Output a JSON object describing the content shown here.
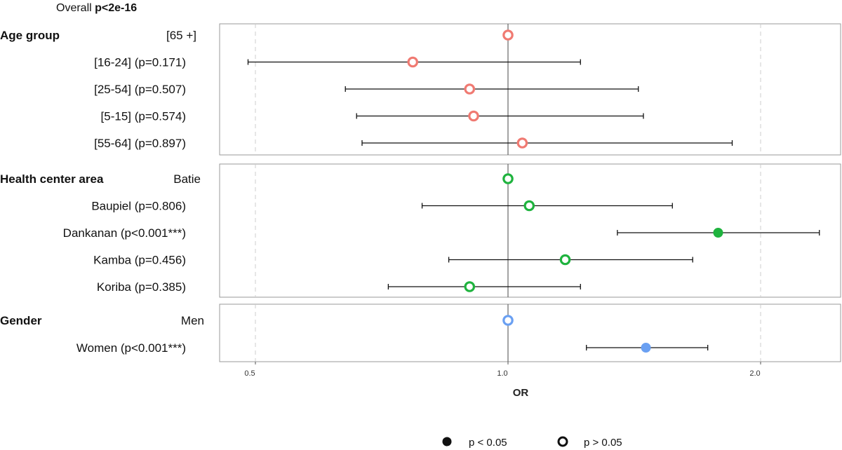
{
  "overall": {
    "prefix": "Overall ",
    "value": "p<2e-16"
  },
  "colors": {
    "Age group": "#f07a72",
    "Health center area": "#1fb33e",
    "Gender": "#6aa0f2",
    "axis": "#555555",
    "grid": "#cccccc",
    "panel_border": "#999999"
  },
  "chart_data": {
    "type": "forest",
    "xlabel": "OR",
    "x_scale": "log",
    "xlim": [
      0.47,
      2.4
    ],
    "xticks": [
      {
        "value": 0.5,
        "label": "0.5"
      },
      {
        "value": 1.0,
        "label": "1.0"
      },
      {
        "value": 2.0,
        "label": "2.0"
      }
    ],
    "reference": 1.0,
    "groups": [
      {
        "name": "Age group",
        "rows": [
          {
            "label": "[65 +]",
            "or": 1.0,
            "lo": null,
            "hi": null,
            "sig": false,
            "reference": true
          },
          {
            "label": "[16-24] (p=0.171)",
            "or": 0.77,
            "lo": 0.49,
            "hi": 1.22,
            "sig": false
          },
          {
            "label": "[25-54] (p=0.507)",
            "or": 0.9,
            "lo": 0.64,
            "hi": 1.43,
            "sig": false
          },
          {
            "label": "[5-15] (p=0.574)",
            "or": 0.91,
            "lo": 0.66,
            "hi": 1.45,
            "sig": false
          },
          {
            "label": "[55-64] (p=0.897)",
            "or": 1.04,
            "lo": 0.67,
            "hi": 1.85,
            "sig": false
          }
        ]
      },
      {
        "name": "Health center area",
        "rows": [
          {
            "label": "Batie",
            "or": 1.0,
            "lo": null,
            "hi": null,
            "sig": false,
            "reference": true
          },
          {
            "label": "Baupiel (p=0.806)",
            "or": 1.06,
            "lo": 0.79,
            "hi": 1.57,
            "sig": false
          },
          {
            "label": "Dankanan (p<0.001***)",
            "or": 1.78,
            "lo": 1.35,
            "hi": 2.35,
            "sig": true
          },
          {
            "label": "Kamba (p=0.456)",
            "or": 1.17,
            "lo": 0.85,
            "hi": 1.66,
            "sig": false
          },
          {
            "label": "Koriba (p=0.385)",
            "or": 0.9,
            "lo": 0.72,
            "hi": 1.22,
            "sig": false
          }
        ]
      },
      {
        "name": "Gender",
        "rows": [
          {
            "label": "Men",
            "or": 1.0,
            "lo": null,
            "hi": null,
            "sig": false,
            "reference": true
          },
          {
            "label": "Women (p<0.001***)",
            "or": 1.46,
            "lo": 1.24,
            "hi": 1.73,
            "sig": true
          }
        ]
      }
    ],
    "legend": {
      "position": "bottom",
      "items": [
        {
          "label": "p < 0.05",
          "symbol": "filled"
        },
        {
          "label": "p > 0.05",
          "symbol": "open"
        }
      ]
    }
  }
}
